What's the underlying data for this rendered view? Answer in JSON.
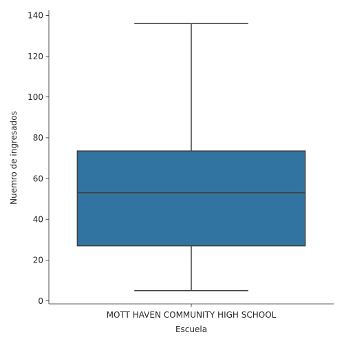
{
  "chart_data": {
    "type": "box",
    "title": "",
    "xlabel": "Escuela",
    "ylabel": "Nuemro de ingresados",
    "categories": [
      "MOTT HAVEN COMMUNITY HIGH SCHOOL"
    ],
    "boxes": [
      {
        "category": "MOTT HAVEN COMMUNITY HIGH SCHOOL",
        "whisker_low": 5,
        "q1": 27,
        "median": 53,
        "q3": 73.5,
        "whisker_high": 136
      }
    ],
    "ylim": [
      -1.5,
      142.5
    ],
    "yticks": [
      0,
      20,
      40,
      60,
      80,
      100,
      120,
      140
    ],
    "grid": false,
    "legend": "none"
  },
  "colors": {
    "box_fill": "#3274a1",
    "line": "#3f3f3f",
    "axis": "#262626",
    "text": "#262626"
  }
}
